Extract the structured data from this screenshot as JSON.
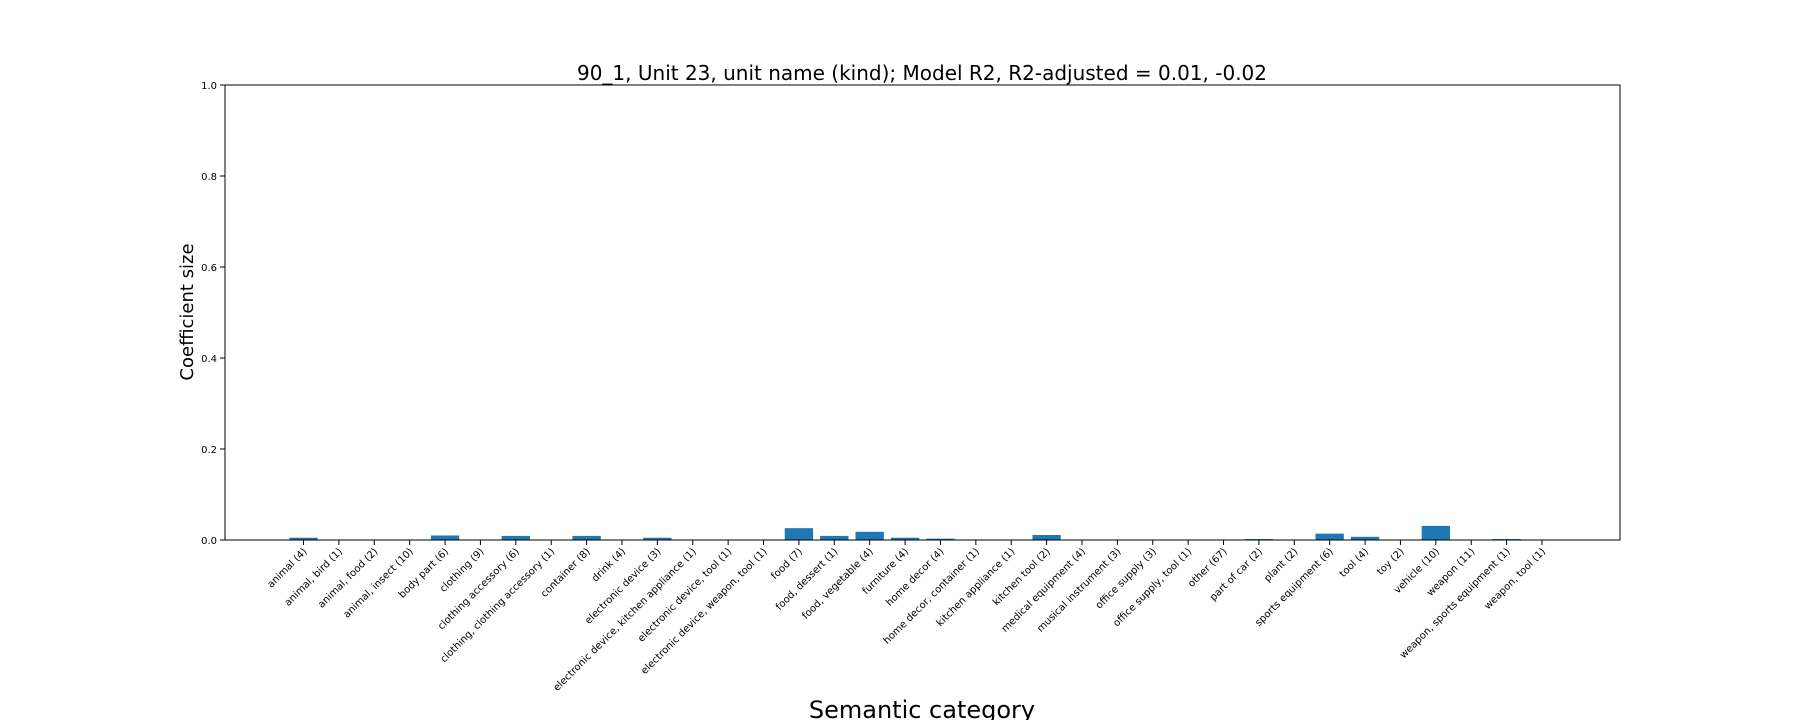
{
  "chart_data": {
    "type": "bar",
    "title": "90_1, Unit 23, unit name (kind); Model R2, R2-adjusted = 0.01, -0.02",
    "xlabel": "Semantic category",
    "ylabel": "Coefficient size",
    "ylim": [
      0,
      1.0
    ],
    "yticks": [
      "0.0",
      "0.2",
      "0.4",
      "0.6",
      "0.8",
      "1.0"
    ],
    "grid": false,
    "bar_color": "#1f77b4",
    "categories": [
      "animal  (4)",
      "animal, bird  (1)",
      "animal, food  (2)",
      "animal, insect  (10)",
      "body part  (6)",
      "clothing  (9)",
      "clothing accessory  (6)",
      "clothing, clothing accessory  (1)",
      "container  (8)",
      "drink  (4)",
      "electronic device  (3)",
      "electronic device, kitchen appliance  (1)",
      "electronic device, tool  (1)",
      "electronic device, weapon, tool  (1)",
      "food  (7)",
      "food, dessert  (1)",
      "food, vegetable  (4)",
      "furniture  (4)",
      "home decor  (4)",
      "home decor, container  (1)",
      "kitchen appliance  (1)",
      "kitchen tool  (2)",
      "medical equipment  (4)",
      "musical instrument  (3)",
      "office supply  (3)",
      "office supply, tool  (1)",
      "other  (67)",
      "part of car  (2)",
      "plant  (2)",
      "sports equipment  (6)",
      "tool  (4)",
      "toy  (2)",
      "vehicle  (10)",
      "weapon  (11)",
      "weapon, sports equipment  (1)",
      "weapon, tool  (1)"
    ],
    "values": [
      0.005,
      0,
      0,
      0,
      0.01,
      0,
      0.009,
      0,
      0.009,
      0,
      0.005,
      0,
      0,
      0,
      0.026,
      0.009,
      0.018,
      0.005,
      0.003,
      0,
      0,
      0.011,
      0,
      0,
      0,
      0,
      0,
      0.002,
      0,
      0.014,
      0.007,
      0,
      0.031,
      0,
      0.002,
      0
    ]
  }
}
